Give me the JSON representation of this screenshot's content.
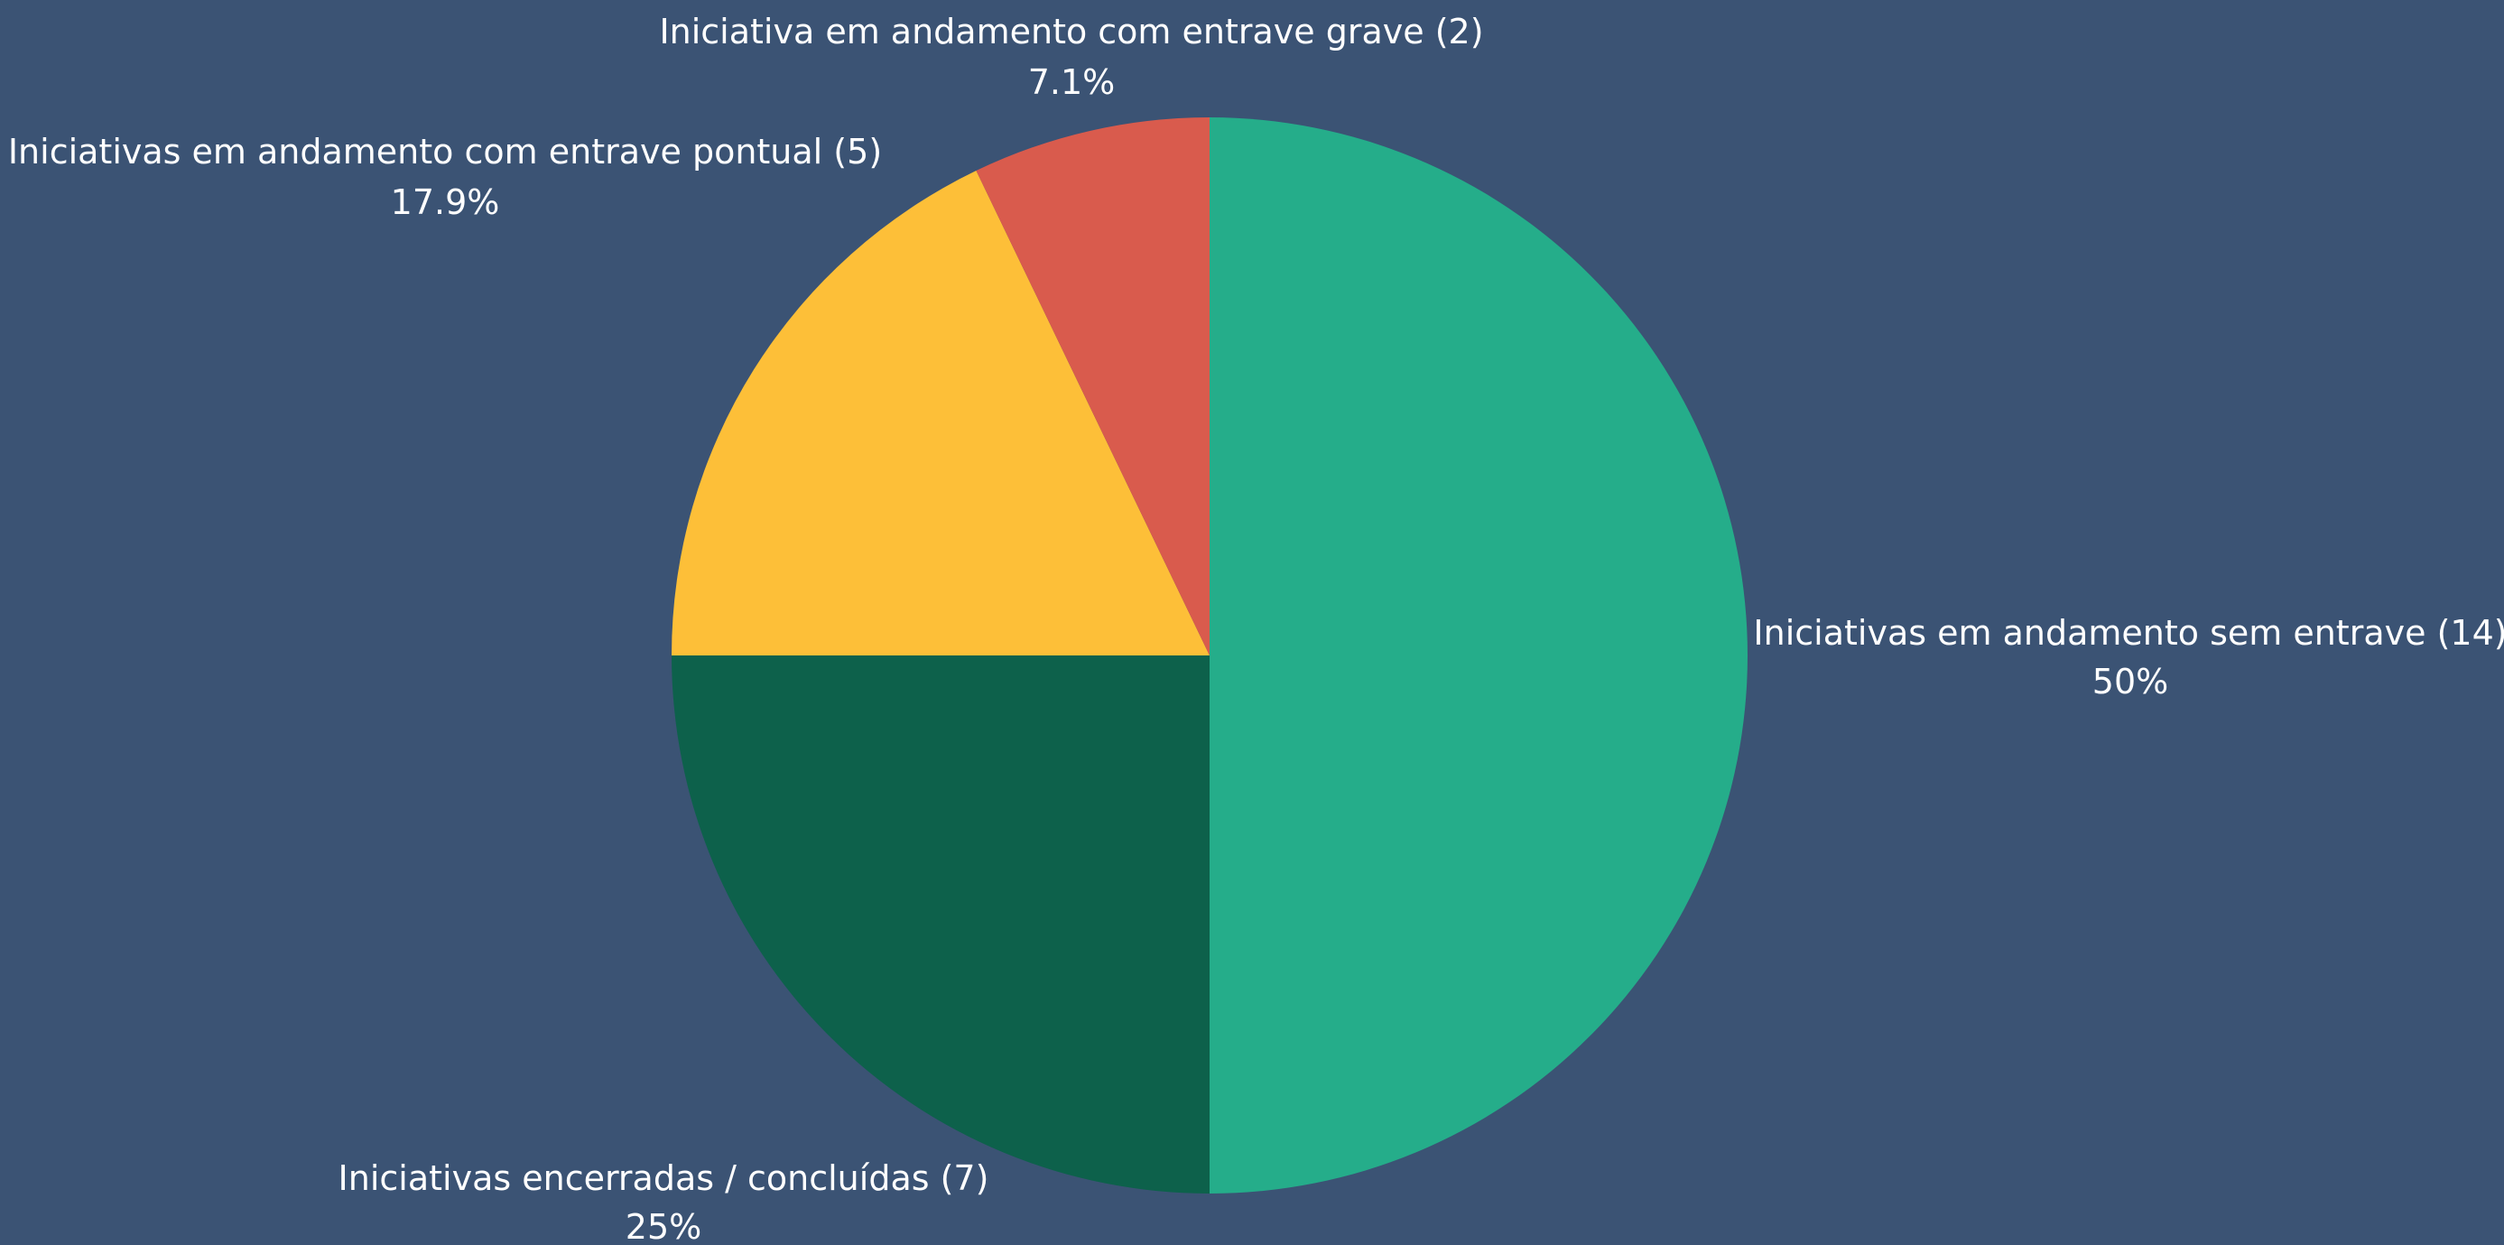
{
  "colors": {
    "background": "#3b5374",
    "label_text": "#ffffff"
  },
  "chart_data": {
    "type": "pie",
    "slices": [
      {
        "label": "Iniciativas em andamento sem entrave (14)",
        "value": 14,
        "percent_label": "50%",
        "color": "#25ad8a"
      },
      {
        "label": "Iniciativas encerradas / concluídas (7)",
        "value": 7,
        "percent_label": "25%",
        "color": "#0d614b"
      },
      {
        "label": "Iniciativas em andamento com entrave pontual (5)",
        "value": 5,
        "percent_label": "17.9%",
        "color": "#fdbf38"
      },
      {
        "label": "Iniciativa em andamento com entrave grave (2)",
        "value": 2,
        "percent_label": "7.1%",
        "color": "#d95b4d"
      }
    ],
    "start_angle": "12 o'clock",
    "direction": "clockwise",
    "legend": "none",
    "grid": false
  }
}
